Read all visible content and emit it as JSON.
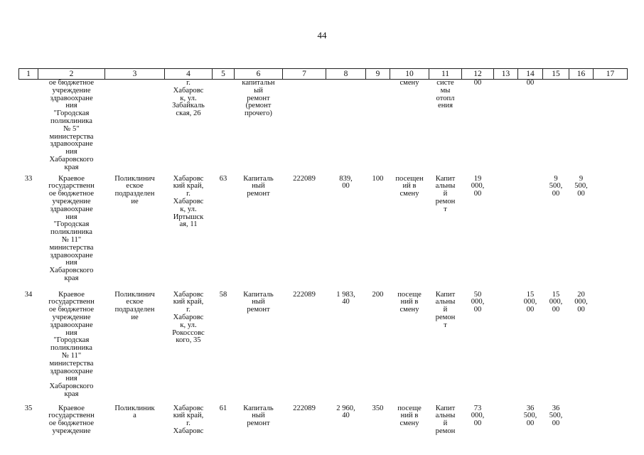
{
  "page_number": "44",
  "header": [
    "1",
    "2",
    "3",
    "4",
    "5",
    "6",
    "7",
    "8",
    "9",
    "10",
    "11",
    "12",
    "13",
    "14",
    "15",
    "16",
    "17"
  ],
  "continued_row": {
    "c2": "ое бюджетное\nучреждение\nздравоохране\nния\n\"Городская\nполиклиника\n№ 5\"\nминистерства\nздравоохране\nния\nХабаровского\nкрая",
    "c4": "г.\nХабаровс\nк, ул.\nЗабайкаль\nская, 26",
    "c6": "капитальн\nый\nремонт\n(ремонт\nпрочего)",
    "c10": "смену",
    "c11": "систе\nмы\nотопл\nения",
    "c12": "00",
    "c14": "00"
  },
  "rows": [
    {
      "c1": "33",
      "c2": "Краевое\nгосударственн\nое бюджетное\nучреждение\nздравоохране\nния\n\"Городская\nполиклиника\n№ 11\"\nминистерства\nздравоохране\nния\nХабаровского\nкрая",
      "c3": "Поликлинич\nеское\nподразделен\nие",
      "c4": "Хабаровс\nкий край,\nг.\nХабаровс\nк, ул.\nИртышск\nая, 11",
      "c5": "63",
      "c6": "Капиталь\nный\nремонт",
      "c7": "222089",
      "c8": "839,\n00",
      "c9": "100",
      "c10": "посещен\nий в\nсмену",
      "c11": "Капит\nальны\nй\nремон\nт",
      "c12": "19\n000,\n00",
      "c13": "",
      "c14": "",
      "c15": "9\n500,\n00",
      "c16": "9\n500,\n00",
      "c17": ""
    },
    {
      "c1": "34",
      "c2": "Краевое\nгосударственн\nое бюджетное\nучреждение\nздравоохране\nния\n\"Городская\nполиклиника\n№ 11\"\nминистерства\nздравоохране\nния\nХабаровского\nкрая",
      "c3": "Поликлинич\nеское\nподразделен\nие",
      "c4": "Хабаровс\nкий край,\nг.\nХабаровс\nк, ул.\nРокоссовс\nкого, 35",
      "c5": "58",
      "c6": "Капиталь\nный\nремонт",
      "c7": "222089",
      "c8": "1 983,\n40",
      "c9": "200",
      "c10": "посеще\nний в\nсмену",
      "c11": "Капит\nальны\nй\nремон\nт",
      "c12": "50\n000,\n00",
      "c13": "",
      "c14": "15\n000,\n00",
      "c15": "15\n000,\n00",
      "c16": "20\n000,\n00",
      "c17": ""
    },
    {
      "c1": "35",
      "c2": "Краевое\nгосударственн\nое бюджетное\nучреждение",
      "c3": "Поликлиник\nа",
      "c4": "Хабаровс\nкий край,\nг.\nХабаровс",
      "c5": "61",
      "c6": "Капиталь\nный\nремонт",
      "c7": "222089",
      "c8": "2 960,\n40",
      "c9": "350",
      "c10": "посеще\nний в\nсмену",
      "c11": "Капит\nальны\nй\nремон",
      "c12": "73\n000,\n00",
      "c13": "",
      "c14": "36\n500,\n00",
      "c15": "36\n500,\n00",
      "c16": "",
      "c17": ""
    }
  ]
}
